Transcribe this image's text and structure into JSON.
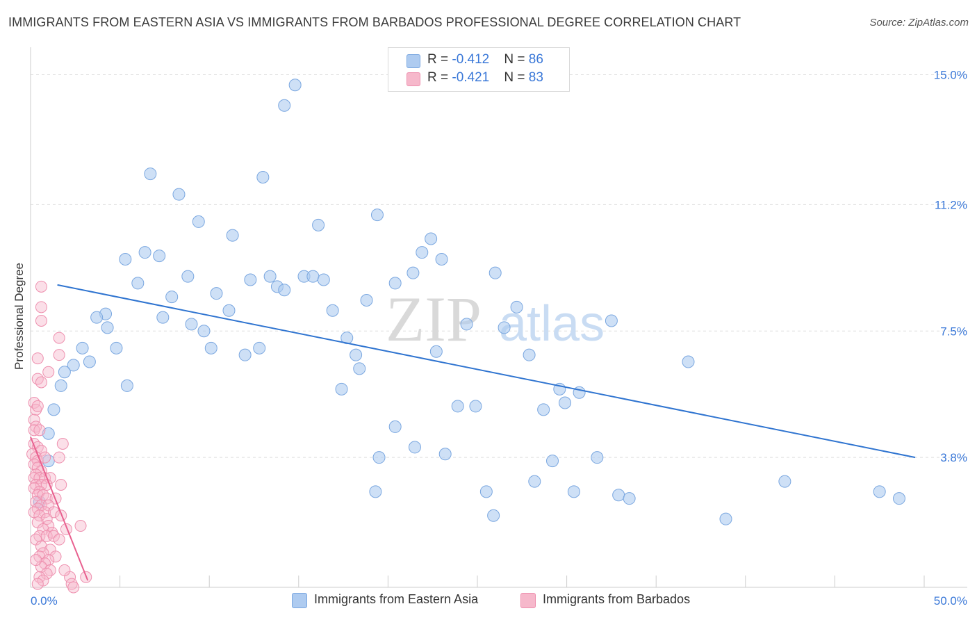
{
  "title": "IMMIGRANTS FROM EASTERN ASIA VS IMMIGRANTS FROM BARBADOS PROFESSIONAL DEGREE CORRELATION CHART",
  "source": "Source: ZipAtlas.com",
  "watermark": {
    "zip": "ZIP",
    "atlas": "atlas"
  },
  "legend": {
    "rows": [
      {
        "r_label": "R = ",
        "r_value": "-0.412",
        "n_label": "N = ",
        "n_value": "86"
      },
      {
        "r_label": "R = ",
        "r_value": "-0.421",
        "n_label": "N = ",
        "n_value": "83"
      }
    ]
  },
  "colors": {
    "blue_fill": "#aecbf0",
    "blue_stroke": "#7aa7e0",
    "blue_line": "#2f74d0",
    "pink_fill": "#f6b8cb",
    "pink_stroke": "#ee8fae",
    "pink_line": "#e8608f",
    "accent_text": "#3a78d8",
    "grid": "#dddddd"
  },
  "chart_data": {
    "type": "scatter",
    "title": "IMMIGRANTS FROM EASTERN ASIA VS IMMIGRANTS FROM BARBADOS PROFESSIONAL DEGREE CORRELATION CHART",
    "xlabel": "",
    "ylabel": "Professional Degree",
    "xlim": [
      0,
      50
    ],
    "ylim": [
      0,
      15.6
    ],
    "x_tick_labels": [
      "0.0%",
      "50.0%"
    ],
    "y_ticks": [
      3.8,
      7.5,
      11.2,
      15.0
    ],
    "y_tick_labels": [
      "3.8%",
      "7.5%",
      "11.2%",
      "15.0%"
    ],
    "grid": true,
    "legend_position": "top-center",
    "series": [
      {
        "name": "Immigrants from Eastern Asia",
        "color": "#aecbf0",
        "trend": {
          "x": [
            1.5,
            49.5
          ],
          "y": [
            8.85,
            3.8
          ]
        },
        "points": [
          [
            14.8,
            14.7
          ],
          [
            14.2,
            14.1
          ],
          [
            6.7,
            12.1
          ],
          [
            13.0,
            12.0
          ],
          [
            8.3,
            11.5
          ],
          [
            9.4,
            10.7
          ],
          [
            16.1,
            10.6
          ],
          [
            19.4,
            10.9
          ],
          [
            11.3,
            10.3
          ],
          [
            22.4,
            10.2
          ],
          [
            6.4,
            9.8
          ],
          [
            7.2,
            9.7
          ],
          [
            5.3,
            9.6
          ],
          [
            21.9,
            9.8
          ],
          [
            23.0,
            9.6
          ],
          [
            21.4,
            9.2
          ],
          [
            26.0,
            9.2
          ],
          [
            15.3,
            9.1
          ],
          [
            15.8,
            9.1
          ],
          [
            8.8,
            9.1
          ],
          [
            13.4,
            9.1
          ],
          [
            12.3,
            9.0
          ],
          [
            16.4,
            9.0
          ],
          [
            6.0,
            8.9
          ],
          [
            13.8,
            8.8
          ],
          [
            14.2,
            8.7
          ],
          [
            20.4,
            8.9
          ],
          [
            10.4,
            8.6
          ],
          [
            7.9,
            8.5
          ],
          [
            18.8,
            8.4
          ],
          [
            27.2,
            8.2
          ],
          [
            16.9,
            8.1
          ],
          [
            11.1,
            8.1
          ],
          [
            4.2,
            8.0
          ],
          [
            3.7,
            7.9
          ],
          [
            7.4,
            7.9
          ],
          [
            32.5,
            7.8
          ],
          [
            24.4,
            7.7
          ],
          [
            26.5,
            7.6
          ],
          [
            4.3,
            7.6
          ],
          [
            9.0,
            7.7
          ],
          [
            9.7,
            7.5
          ],
          [
            17.7,
            7.3
          ],
          [
            2.9,
            7.0
          ],
          [
            4.8,
            7.0
          ],
          [
            10.1,
            7.0
          ],
          [
            12.8,
            7.0
          ],
          [
            18.2,
            6.8
          ],
          [
            22.7,
            6.9
          ],
          [
            12.0,
            6.8
          ],
          [
            27.9,
            6.8
          ],
          [
            36.8,
            6.6
          ],
          [
            2.4,
            6.5
          ],
          [
            3.3,
            6.6
          ],
          [
            18.4,
            6.4
          ],
          [
            1.9,
            6.3
          ],
          [
            1.7,
            5.9
          ],
          [
            5.4,
            5.9
          ],
          [
            17.4,
            5.8
          ],
          [
            29.6,
            5.8
          ],
          [
            30.7,
            5.7
          ],
          [
            23.9,
            5.3
          ],
          [
            24.9,
            5.3
          ],
          [
            29.9,
            5.4
          ],
          [
            28.7,
            5.2
          ],
          [
            1.3,
            5.2
          ],
          [
            20.4,
            4.7
          ],
          [
            1.0,
            4.5
          ],
          [
            21.5,
            4.1
          ],
          [
            23.2,
            3.9
          ],
          [
            19.5,
            3.8
          ],
          [
            29.2,
            3.7
          ],
          [
            31.7,
            3.8
          ],
          [
            1.0,
            3.7
          ],
          [
            28.2,
            3.1
          ],
          [
            42.2,
            3.1
          ],
          [
            19.3,
            2.8
          ],
          [
            25.5,
            2.8
          ],
          [
            30.4,
            2.8
          ],
          [
            32.9,
            2.7
          ],
          [
            33.5,
            2.6
          ],
          [
            47.5,
            2.8
          ],
          [
            48.6,
            2.6
          ],
          [
            25.9,
            2.1
          ],
          [
            38.9,
            2.0
          ],
          [
            0.5,
            2.5
          ]
        ]
      },
      {
        "name": "Immigrants from Barbados",
        "color": "#f6b8cb",
        "trend": {
          "x": [
            0,
            3.2
          ],
          "y": [
            4.4,
            0.2
          ]
        },
        "points": [
          [
            0.6,
            8.8
          ],
          [
            0.6,
            8.2
          ],
          [
            0.6,
            7.8
          ],
          [
            1.6,
            7.3
          ],
          [
            1.6,
            6.8
          ],
          [
            0.4,
            6.7
          ],
          [
            1.0,
            6.3
          ],
          [
            0.4,
            6.1
          ],
          [
            0.6,
            6.0
          ],
          [
            0.2,
            5.4
          ],
          [
            0.3,
            5.2
          ],
          [
            0.4,
            5.3
          ],
          [
            0.2,
            4.9
          ],
          [
            0.3,
            4.7
          ],
          [
            0.2,
            4.6
          ],
          [
            0.5,
            4.6
          ],
          [
            0.2,
            4.2
          ],
          [
            0.4,
            4.1
          ],
          [
            0.6,
            4.0
          ],
          [
            1.8,
            4.2
          ],
          [
            0.1,
            3.9
          ],
          [
            0.3,
            3.8
          ],
          [
            0.4,
            3.7
          ],
          [
            0.8,
            3.8
          ],
          [
            1.6,
            3.8
          ],
          [
            0.2,
            3.6
          ],
          [
            0.4,
            3.5
          ],
          [
            0.6,
            3.4
          ],
          [
            0.3,
            3.3
          ],
          [
            0.2,
            3.2
          ],
          [
            0.5,
            3.2
          ],
          [
            0.8,
            3.2
          ],
          [
            1.1,
            3.2
          ],
          [
            0.3,
            3.0
          ],
          [
            0.6,
            3.0
          ],
          [
            0.9,
            3.0
          ],
          [
            1.7,
            3.0
          ],
          [
            0.2,
            2.9
          ],
          [
            0.5,
            2.8
          ],
          [
            0.4,
            2.7
          ],
          [
            0.7,
            2.7
          ],
          [
            0.9,
            2.6
          ],
          [
            1.4,
            2.6
          ],
          [
            0.3,
            2.5
          ],
          [
            0.6,
            2.4
          ],
          [
            1.0,
            2.4
          ],
          [
            0.4,
            2.3
          ],
          [
            0.8,
            2.2
          ],
          [
            1.3,
            2.2
          ],
          [
            0.2,
            2.2
          ],
          [
            0.5,
            2.1
          ],
          [
            1.7,
            2.1
          ],
          [
            0.9,
            2.0
          ],
          [
            0.4,
            1.9
          ],
          [
            1.0,
            1.8
          ],
          [
            2.8,
            1.8
          ],
          [
            0.7,
            1.7
          ],
          [
            1.2,
            1.6
          ],
          [
            2.0,
            1.7
          ],
          [
            0.5,
            1.5
          ],
          [
            0.9,
            1.5
          ],
          [
            1.3,
            1.5
          ],
          [
            0.3,
            1.4
          ],
          [
            1.6,
            1.4
          ],
          [
            0.6,
            1.2
          ],
          [
            1.1,
            1.1
          ],
          [
            0.7,
            1.0
          ],
          [
            1.4,
            0.9
          ],
          [
            0.5,
            0.9
          ],
          [
            1.0,
            0.8
          ],
          [
            0.8,
            0.7
          ],
          [
            0.6,
            0.6
          ],
          [
            1.1,
            0.5
          ],
          [
            0.9,
            0.4
          ],
          [
            0.5,
            0.3
          ],
          [
            2.2,
            0.3
          ],
          [
            0.7,
            0.2
          ],
          [
            2.3,
            0.1
          ],
          [
            3.1,
            0.3
          ],
          [
            0.4,
            0.1
          ],
          [
            2.4,
            0.0
          ],
          [
            1.9,
            0.5
          ],
          [
            0.3,
            0.8
          ]
        ]
      }
    ]
  }
}
